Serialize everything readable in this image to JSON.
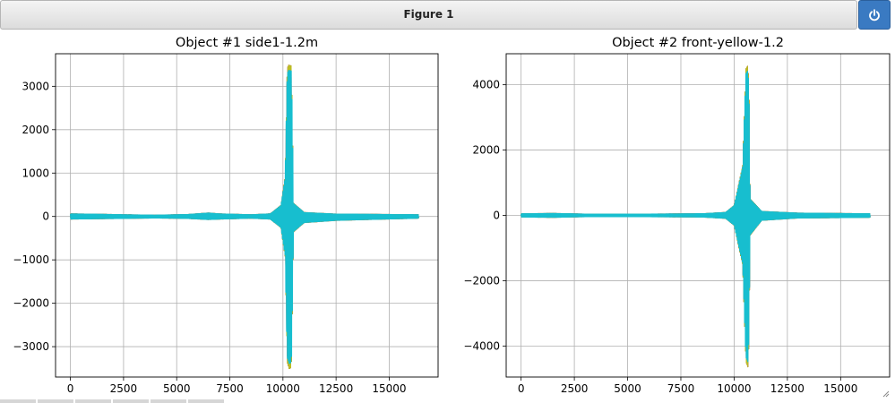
{
  "window": {
    "title": "Figure 1"
  },
  "colors": {
    "series": [
      "#1f77b4",
      "#ff7f0e",
      "#2ca02c",
      "#d62728",
      "#9467bd",
      "#8c564b",
      "#e377c2",
      "#7f7f7f",
      "#bcbd22",
      "#17becf"
    ],
    "grid": "#b0b0b0",
    "button": "#3a7ac2"
  },
  "chart_data": [
    {
      "type": "line",
      "title": "Object #1 side1-1.2m",
      "xlabel": "",
      "ylabel": "",
      "xlim": [
        -700,
        17300
      ],
      "ylim": [
        -3700,
        3750
      ],
      "xticks": [
        0,
        2500,
        5000,
        7500,
        10000,
        12500,
        15000
      ],
      "xtick_labels": [
        "0",
        "2500",
        "5000",
        "7500",
        "10000",
        "12500",
        "15000"
      ],
      "yticks": [
        -3000,
        -2000,
        -1000,
        0,
        1000,
        2000,
        3000
      ],
      "ytick_labels": [
        "−3000",
        "−2000",
        "−1000",
        "0",
        "1000",
        "2000",
        "3000"
      ],
      "grid": true,
      "x_extent": [
        0,
        16400
      ],
      "peak_x": 10300,
      "upper_envelope": [
        [
          0,
          60
        ],
        [
          1500,
          50
        ],
        [
          2500,
          40
        ],
        [
          4000,
          30
        ],
        [
          5500,
          45
        ],
        [
          6500,
          80
        ],
        [
          7000,
          60
        ],
        [
          8500,
          40
        ],
        [
          9400,
          60
        ],
        [
          9900,
          250
        ],
        [
          10100,
          900
        ],
        [
          10200,
          3300
        ],
        [
          10250,
          3420
        ],
        [
          10400,
          3400
        ],
        [
          10450,
          2000
        ],
        [
          10500,
          300
        ],
        [
          11000,
          90
        ],
        [
          12500,
          55
        ],
        [
          14000,
          50
        ],
        [
          16400,
          40
        ]
      ],
      "lower_envelope": [
        [
          0,
          -60
        ],
        [
          1500,
          -50
        ],
        [
          2500,
          -45
        ],
        [
          4000,
          -35
        ],
        [
          5500,
          -45
        ],
        [
          6500,
          -70
        ],
        [
          7000,
          -60
        ],
        [
          8500,
          -40
        ],
        [
          9400,
          -60
        ],
        [
          9900,
          -250
        ],
        [
          10100,
          -900
        ],
        [
          10200,
          -3300
        ],
        [
          10300,
          -3450
        ],
        [
          10400,
          -3400
        ],
        [
          10450,
          -2000
        ],
        [
          10500,
          -350
        ],
        [
          11000,
          -140
        ],
        [
          12500,
          -90
        ],
        [
          14000,
          -70
        ],
        [
          16400,
          -40
        ]
      ]
    },
    {
      "type": "line",
      "title": "Object #2 front-yellow-1.2",
      "xlabel": "",
      "ylabel": "",
      "xlim": [
        -700,
        17300
      ],
      "ylim": [
        -4950,
        4950
      ],
      "xticks": [
        0,
        2500,
        5000,
        7500,
        10000,
        12500,
        15000
      ],
      "xtick_labels": [
        "0",
        "2500",
        "5000",
        "7500",
        "10000",
        "12500",
        "15000"
      ],
      "yticks": [
        -4000,
        -2000,
        0,
        2000,
        4000
      ],
      "ytick_labels": [
        "−4000",
        "−2000",
        "0",
        "2000",
        "4000"
      ],
      "grid": true,
      "x_extent": [
        0,
        16400
      ],
      "peak_x": 10700,
      "upper_envelope": [
        [
          0,
          50
        ],
        [
          1500,
          60
        ],
        [
          3000,
          40
        ],
        [
          6000,
          40
        ],
        [
          8500,
          50
        ],
        [
          9600,
          90
        ],
        [
          10000,
          300
        ],
        [
          10400,
          1500
        ],
        [
          10550,
          4400
        ],
        [
          10650,
          4500
        ],
        [
          10700,
          3800
        ],
        [
          10750,
          500
        ],
        [
          11300,
          120
        ],
        [
          13000,
          70
        ],
        [
          16400,
          50
        ]
      ],
      "lower_envelope": [
        [
          0,
          -50
        ],
        [
          1500,
          -60
        ],
        [
          3000,
          -40
        ],
        [
          6000,
          -40
        ],
        [
          8500,
          -50
        ],
        [
          9600,
          -90
        ],
        [
          10000,
          -300
        ],
        [
          10400,
          -1500
        ],
        [
          10550,
          -4400
        ],
        [
          10650,
          -4550
        ],
        [
          10700,
          -3800
        ],
        [
          10750,
          -600
        ],
        [
          11300,
          -150
        ],
        [
          13000,
          -80
        ],
        [
          16400,
          -60
        ]
      ]
    }
  ]
}
